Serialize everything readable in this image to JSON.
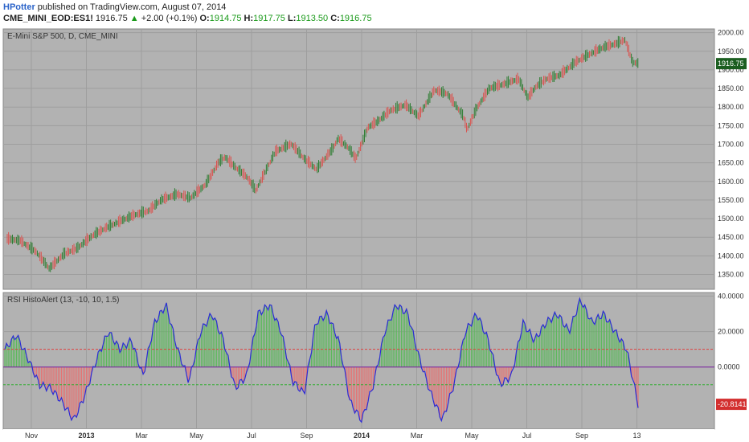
{
  "header": {
    "author": "HPotter",
    "published": "published on TradingView.com, August 07, 2014",
    "symbol": "CME_MINI_EOD:ES1!",
    "last": "1916.75",
    "change": "+2.00 (+0.1%)",
    "o_label": "O:",
    "o_value": "1914.75",
    "h_label": "H:",
    "h_value": "1917.75",
    "l_label": "L:",
    "l_value": "1913.50",
    "c_label": "C:",
    "c_value": "1916.75"
  },
  "colors": {
    "plot_bg": "#b2b2b2",
    "up_bar": "#2e7d32",
    "down_bar": "#d9534f",
    "rsi_line": "#2b2bd6",
    "hist_pos": "#5cb85c",
    "hist_neg": "#e57373",
    "upper_line": "#e04040",
    "lower_line": "#2fae2f",
    "zero_line": "#7b1fa2",
    "price_tag": "#1b5e20",
    "rsi_tag": "#d32f2f"
  },
  "chart_data": [
    {
      "type": "line",
      "title": "E-Mini S&P 500, D, CME_MINI",
      "ylim": [
        1310,
        2010
      ],
      "yticks": [
        "2000.00",
        "1950.00",
        "1900.00",
        "1850.00",
        "1800.00",
        "1750.00",
        "1700.00",
        "1650.00",
        "1600.00",
        "1550.00",
        "1500.00",
        "1450.00",
        "1400.00",
        "1350.00"
      ],
      "last_value_label": "1916.75",
      "x": [
        "2012-10-01",
        "2012-10-15",
        "2012-11-01",
        "2012-11-15",
        "2012-12-01",
        "2012-12-15",
        "2013-01-01",
        "2013-01-15",
        "2013-02-01",
        "2013-02-15",
        "2013-03-01",
        "2013-03-15",
        "2013-04-01",
        "2013-04-15",
        "2013-05-01",
        "2013-05-15",
        "2013-05-22",
        "2013-06-01",
        "2013-06-15",
        "2013-06-24",
        "2013-07-01",
        "2013-07-15",
        "2013-08-01",
        "2013-08-15",
        "2013-08-28",
        "2013-09-15",
        "2013-09-20",
        "2013-10-01",
        "2013-10-09",
        "2013-10-22",
        "2013-11-01",
        "2013-11-15",
        "2013-12-01",
        "2013-12-15",
        "2014-01-01",
        "2014-01-15",
        "2014-02-01",
        "2014-02-05",
        "2014-02-15",
        "2014-03-01",
        "2014-03-15",
        "2014-04-01",
        "2014-04-11",
        "2014-04-20",
        "2014-05-01",
        "2014-05-15",
        "2014-06-01",
        "2014-06-15",
        "2014-07-01",
        "2014-07-15",
        "2014-07-24",
        "2014-08-01",
        "2014-08-07"
      ],
      "series": [
        {
          "values": [
            1445,
            1440,
            1410,
            1365,
            1405,
            1420,
            1455,
            1475,
            1495,
            1510,
            1520,
            1550,
            1565,
            1555,
            1590,
            1650,
            1665,
            1640,
            1610,
            1575,
            1610,
            1680,
            1700,
            1660,
            1632,
            1690,
            1715,
            1690,
            1660,
            1745,
            1760,
            1790,
            1805,
            1775,
            1845,
            1835,
            1775,
            1738,
            1795,
            1850,
            1860,
            1875,
            1825,
            1855,
            1875,
            1885,
            1920,
            1940,
            1960,
            1970,
            1980,
            1920,
            1916.75
          ]
        }
      ]
    },
    {
      "type": "bar",
      "title": "RSI HistoAlert (13, -10, 10, 1.5)",
      "ylim": [
        -35,
        42
      ],
      "yticks": [
        "40.0000",
        "20.0000",
        "0.0000"
      ],
      "upper_level": 10,
      "lower_level": -10,
      "last_value_label": "-20.8141",
      "x_tick_labels": [
        "Nov",
        "2013",
        "Mar",
        "May",
        "Jul",
        "Sep",
        "2014",
        "Mar",
        "May",
        "Jul",
        "Sep",
        "13"
      ],
      "series": [
        {
          "values": [
            10,
            18,
            5,
            -10,
            -12,
            -20,
            -30,
            -15,
            5,
            20,
            10,
            15,
            -5,
            25,
            35,
            10,
            -8,
            20,
            30,
            15,
            -12,
            -5,
            30,
            35,
            20,
            -8,
            -15,
            25,
            30,
            15,
            -20,
            -30,
            -10,
            20,
            35,
            30,
            5,
            -15,
            -30,
            -10,
            20,
            30,
            15,
            -10,
            -5,
            25,
            15,
            25,
            30,
            20,
            38,
            25,
            30,
            20,
            10,
            -21
          ]
        }
      ]
    }
  ]
}
